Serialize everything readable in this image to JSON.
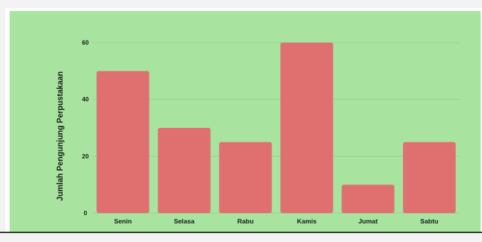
{
  "chart_data": {
    "type": "bar",
    "title": "",
    "xlabel": "",
    "ylabel": "Jumlah Pengunjung Perpustakaan",
    "categories": [
      "Senin",
      "Selasa",
      "Rabu",
      "Kamis",
      "Jumat",
      "Sabtu"
    ],
    "values": [
      50,
      30,
      25,
      60,
      10,
      25
    ],
    "ylim": [
      0,
      60
    ],
    "yticks": [
      "0",
      "20",
      "40",
      "60"
    ],
    "grid": true,
    "legend": "none",
    "colors": {
      "plot_background": "#a8e4a0",
      "bar": "#e07070",
      "grid": "#94d28d",
      "text": "#1a1a1a"
    }
  }
}
